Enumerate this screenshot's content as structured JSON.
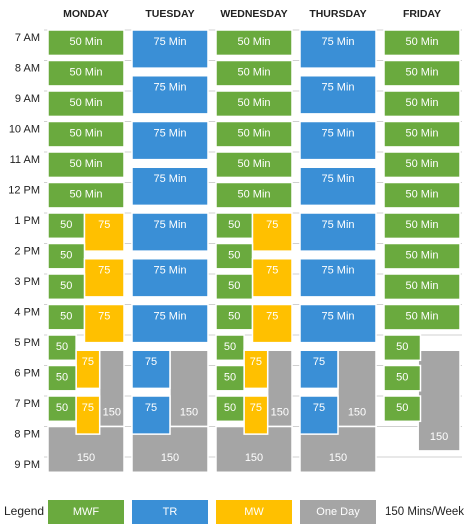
{
  "header": {
    "days": [
      "MONDAY",
      "TUESDAY",
      "WEDNESDAY",
      "THURSDAY",
      "FRIDAY"
    ]
  },
  "times": [
    "7 AM",
    "8 AM",
    "9 AM",
    "10 AM",
    "11 AM",
    "12 PM",
    "1 PM",
    "2 PM",
    "3 PM",
    "4 PM",
    "5 PM",
    "6 PM",
    "7 PM",
    "8 PM",
    "9 PM"
  ],
  "schedule": [
    [
      "50 Min",
      "50 Min",
      "50 Min",
      "50 Min",
      "50 Min",
      "50 Min",
      "50",
      "75",
      "50",
      "75",
      "50",
      "50",
      "75",
      "150",
      "50",
      "75",
      "50",
      "50",
      "75",
      "150"
    ],
    [
      "75 Min",
      "75 Min",
      "75 Min",
      "75 Min",
      "75 Min",
      "75 Min",
      "75 Min",
      "75",
      "150",
      "75",
      "150"
    ],
    [
      "50 Min",
      "50 Min",
      "50 Min",
      "50 Min",
      "50 Min",
      "50 Min",
      "50",
      "75",
      "50",
      "75",
      "50",
      "50",
      "75",
      "150",
      "50",
      "75",
      "50",
      "50",
      "75",
      "150"
    ],
    [
      "75 Min",
      "75 Min",
      "75 Min",
      "75 Min",
      "75 Min",
      "75 Min",
      "75 Min",
      "75",
      "150",
      "75",
      "150"
    ],
    [
      "50 Min",
      "50 Min",
      "50 Min",
      "50 Min",
      "50 Min",
      "50 Min",
      "50 Min",
      "50 Min",
      "50 Min",
      "50 Min",
      "50",
      "150",
      "50",
      "50"
    ]
  ],
  "legend": {
    "title": "Legend",
    "items": [
      {
        "label": "MWF",
        "color": "#6aaa3e"
      },
      {
        "label": "TR",
        "color": "#3a8fd6"
      },
      {
        "label": "MW",
        "color": "#ffc000"
      },
      {
        "label": "One Day",
        "color": "#a5a5a5"
      }
    ],
    "note": "150 Mins/Week"
  }
}
